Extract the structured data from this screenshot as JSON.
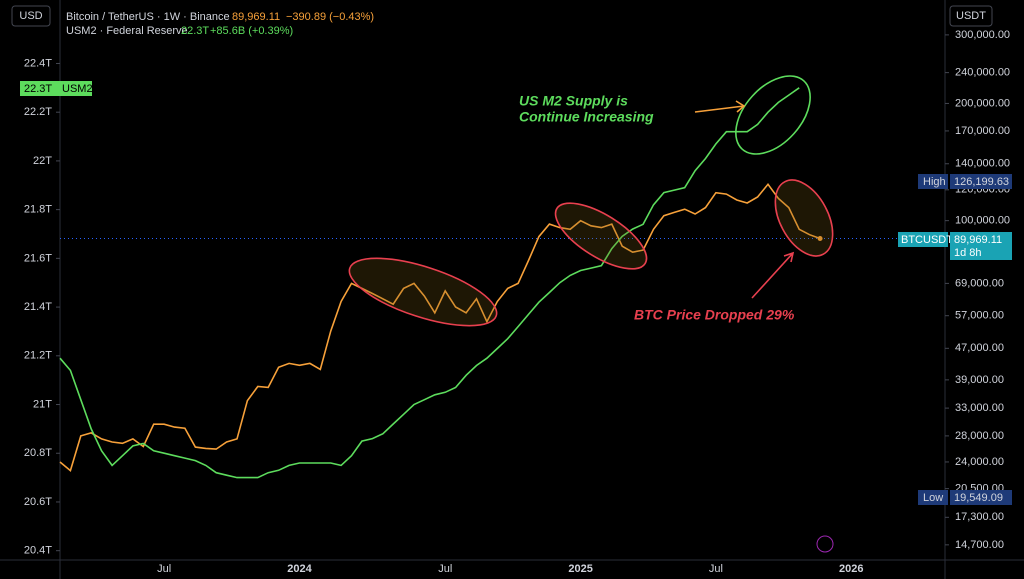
{
  "chart_data": {
    "type": "line",
    "y_label": "USD",
    "y2_label": "USDT",
    "annotations": [
      "US M2 Supply is",
      "Continue Increasing",
      "BTC Price Dropped 29%"
    ],
    "tags": {
      "m2_value": "22.3T",
      "m2_name": "USM2",
      "high": "High",
      "high_value": "126,199.63",
      "btc_name": "BTCUSDT",
      "btc_value": "89,969.11",
      "countdown": "1d 8h",
      "low": "Low",
      "low_value": "19,549.09"
    },
    "categories": [
      null,
      null,
      null,
      null,
      null,
      null,
      null,
      null,
      null,
      null,
      "Jul",
      null,
      null,
      null,
      null,
      null,
      null,
      null,
      null,
      null,
      null,
      null,
      null,
      "2024",
      null,
      null,
      null,
      null,
      null,
      null,
      null,
      null,
      null,
      null,
      null,
      null,
      null,
      "Jul",
      null,
      null,
      null,
      null,
      null,
      null,
      null,
      null,
      null,
      null,
      null,
      null,
      "2025",
      null,
      null,
      null,
      null,
      null,
      null,
      null,
      null,
      null,
      null,
      null,
      null,
      "Jul",
      null,
      null,
      null,
      null,
      null,
      null,
      null,
      null,
      null,
      null,
      null,
      null,
      "2026",
      null,
      null,
      null,
      null,
      null,
      null,
      null,
      null
    ],
    "ylim": [
      20.37,
      22.64
    ],
    "yticks": [
      {
        "value": 20.4,
        "label": "20.4T"
      },
      {
        "value": 20.6,
        "label": "20.6T"
      },
      {
        "value": 20.8,
        "label": "20.8T"
      },
      {
        "value": 21,
        "label": "21T"
      },
      {
        "value": 21.2,
        "label": "21.2T"
      },
      {
        "value": 21.4,
        "label": "21.4T"
      },
      {
        "value": 21.6,
        "label": "21.6T"
      },
      {
        "value": 21.8,
        "label": "21.8T"
      },
      {
        "value": 22,
        "label": "22T"
      },
      {
        "value": 22.2,
        "label": "22.2T"
      },
      {
        "value": 22.4,
        "label": "22.4T"
      }
    ],
    "y2lim": [
      13600,
      358000
    ],
    "y2_log": true,
    "y2ticks": [
      {
        "value": 14700,
        "label": "14,700.00"
      },
      {
        "value": 17300,
        "label": "17,300.00"
      },
      {
        "value": 20500,
        "label": "20,500.00"
      },
      {
        "value": 24000,
        "label": "24,000.00"
      },
      {
        "value": 28000,
        "label": "28,000.00"
      },
      {
        "value": 33000,
        "label": "33,000.00"
      },
      {
        "value": 39000,
        "label": "39,000.00"
      },
      {
        "value": 47000,
        "label": "47,000.00"
      },
      {
        "value": 57000,
        "label": "57,000.00"
      },
      {
        "value": 69000,
        "label": "69,000.00"
      },
      {
        "value": 100000,
        "label": "100,000.00"
      },
      {
        "value": 120000,
        "label": "120,000.00"
      },
      {
        "value": 140000,
        "label": "140,000.00"
      },
      {
        "value": 170000,
        "label": "170,000.00"
      },
      {
        "value": 200000,
        "label": "200,000.00"
      },
      {
        "value": 240000,
        "label": "240,000.00"
      },
      {
        "value": 300000,
        "label": "300,000.00"
      }
    ],
    "grid": false,
    "series": [
      {
        "name": "Bitcoin / TetherUS · 1W · Binance",
        "color": "#f7a13a",
        "axis": "y2",
        "last_label": "89,969.11",
        "change_label": "−390.89 (−0.43%)",
        "values": [
          24000,
          22800,
          28000,
          28500,
          27500,
          27000,
          26800,
          27500,
          26300,
          30000,
          30000,
          29500,
          29300,
          26200,
          26000,
          25900,
          27000,
          27500,
          34500,
          37500,
          37300,
          42000,
          43000,
          42500,
          43000,
          41500,
          52000,
          62000,
          69000,
          67000,
          65000,
          63000,
          61000,
          67000,
          69000,
          64000,
          58000,
          66000,
          60000,
          58000,
          63000,
          55000,
          62000,
          67000,
          69000,
          79000,
          91000,
          98000,
          96000,
          95000,
          100000,
          97000,
          96000,
          98000,
          86000,
          83000,
          84000,
          95000,
          103000,
          105000,
          107000,
          104000,
          108000,
          118000,
          117000,
          113000,
          111000,
          115000,
          124000,
          114000,
          108000,
          95000,
          92000,
          89969.11,
          null,
          null,
          null,
          null,
          null,
          null,
          null,
          null,
          null,
          null,
          null
        ]
      },
      {
        "name": "USM2 · Federal Reserve",
        "color": "#5ddc5d",
        "axis": "y",
        "last_label": "22.3T",
        "change_label": "+85.6B (+0.39%)",
        "values": [
          21.19,
          21.14,
          21.02,
          20.9,
          20.81,
          20.75,
          20.79,
          20.83,
          20.84,
          20.81,
          20.8,
          20.79,
          20.78,
          20.77,
          20.75,
          20.72,
          20.71,
          20.7,
          20.7,
          20.7,
          20.72,
          20.73,
          20.75,
          20.76,
          20.76,
          20.76,
          20.76,
          20.75,
          20.79,
          20.85,
          20.86,
          20.88,
          20.92,
          20.96,
          21,
          21.02,
          21.04,
          21.05,
          21.07,
          21.12,
          21.16,
          21.19,
          21.23,
          21.27,
          21.32,
          21.37,
          21.42,
          21.46,
          21.5,
          21.53,
          21.55,
          21.56,
          21.57,
          21.64,
          21.69,
          21.72,
          21.74,
          21.82,
          21.87,
          21.88,
          21.89,
          21.96,
          22.01,
          22.07,
          22.12,
          22.12,
          22.12,
          22.15,
          22.2,
          22.24,
          22.27,
          22.3,
          null,
          null,
          null,
          null,
          null,
          null,
          null,
          null,
          null,
          null,
          null,
          null,
          null
        ]
      }
    ]
  }
}
